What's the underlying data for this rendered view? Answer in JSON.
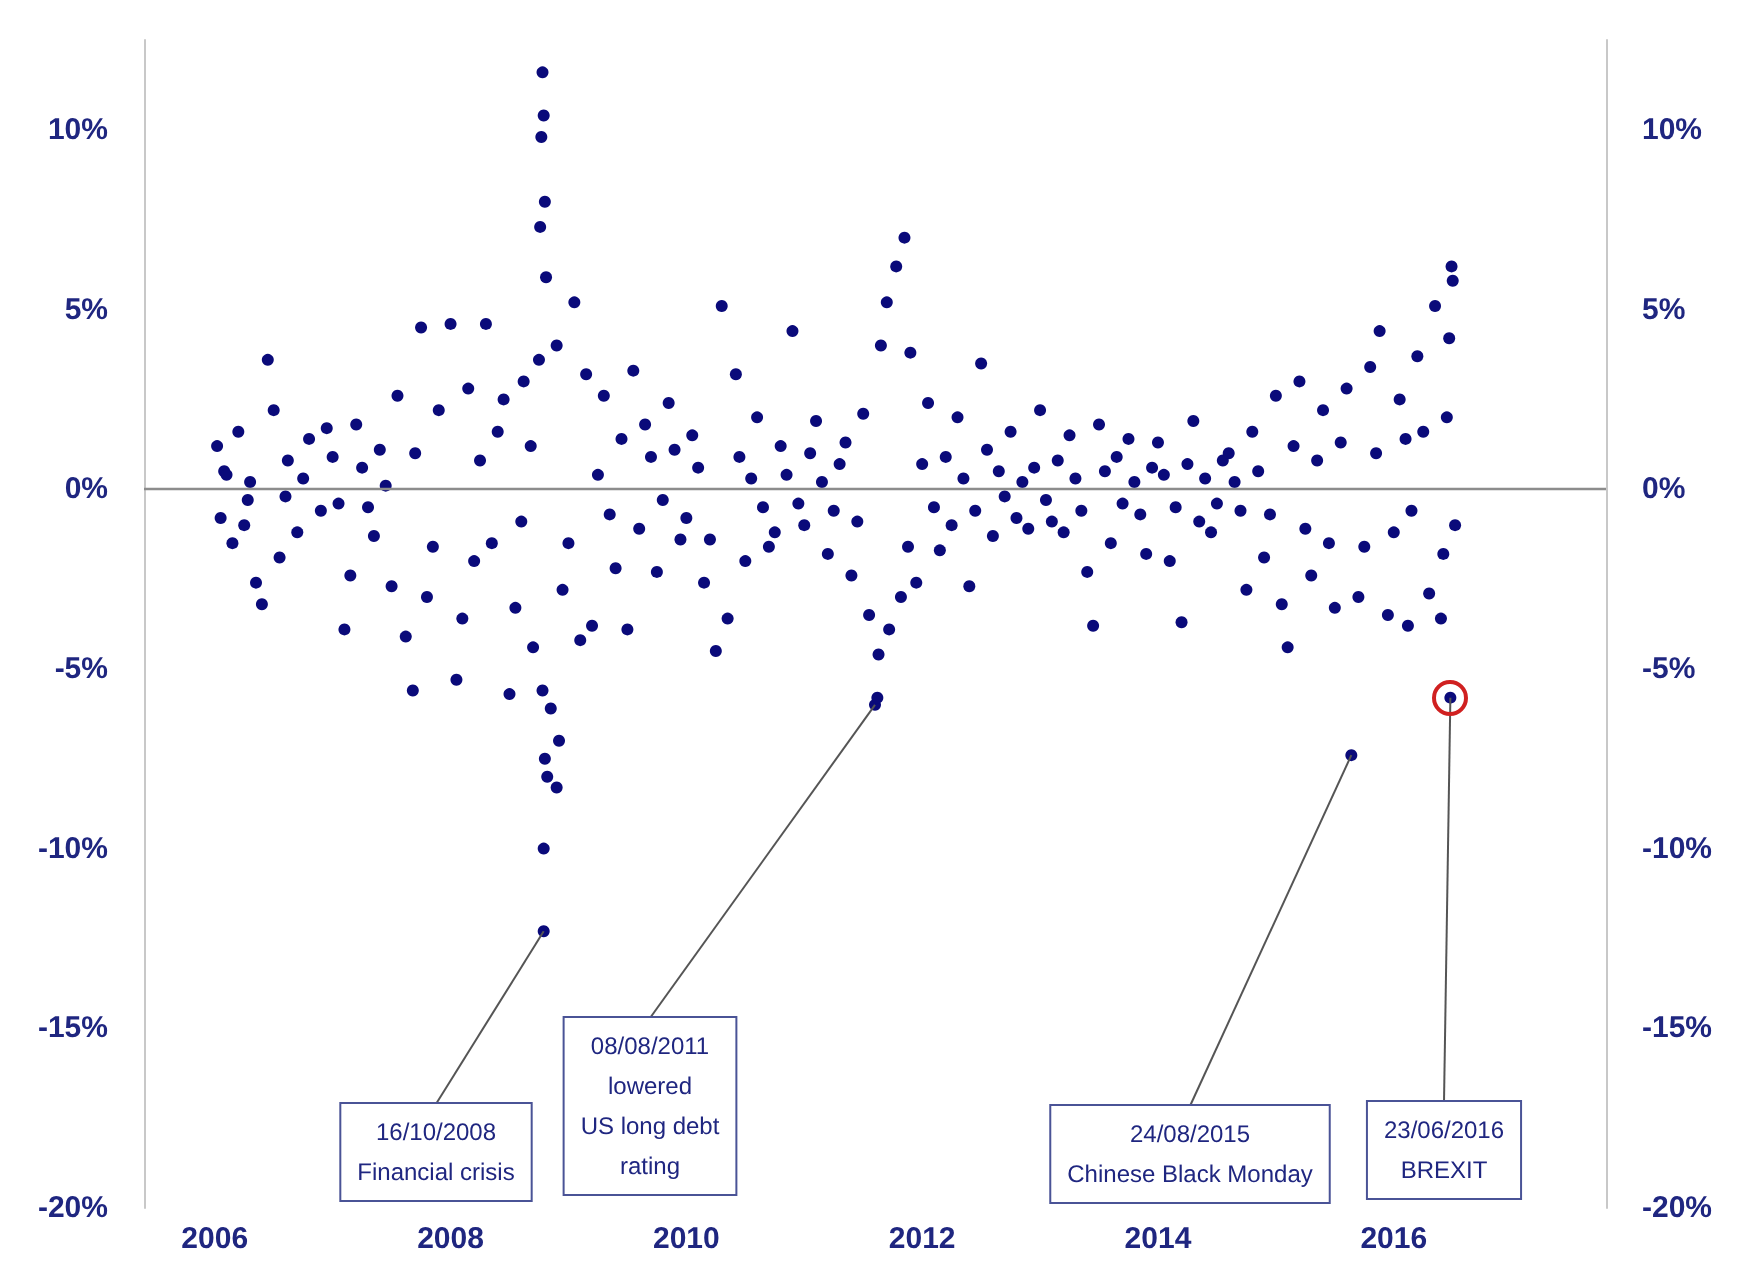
{
  "chart_data": {
    "type": "scatter",
    "marker": "circle",
    "xlim": [
      2005.4,
      2017.8
    ],
    "xticks": [
      2006,
      2008,
      2010,
      2012,
      2014,
      2016
    ],
    "ylim": [
      -20,
      12.5
    ],
    "yticks": [
      {
        "value": -20,
        "label": "-20%"
      },
      {
        "value": -15,
        "label": "-15%"
      },
      {
        "value": -10,
        "label": "-10%"
      },
      {
        "value": -5,
        "label": "-5%"
      },
      {
        "value": 0,
        "label": "0%"
      },
      {
        "value": 5,
        "label": "5%"
      },
      {
        "value": 10,
        "label": "10%"
      }
    ],
    "y2lim": [
      -20,
      12.5
    ],
    "y2ticks": [
      {
        "value": -20,
        "label": "-20%"
      },
      {
        "value": -15,
        "label": "-15%"
      },
      {
        "value": -10,
        "label": "-10%"
      },
      {
        "value": -5,
        "label": "-5%"
      },
      {
        "value": 0,
        "label": "0%"
      },
      {
        "value": 5,
        "label": "5%"
      },
      {
        "value": 10,
        "label": "10%"
      }
    ],
    "ref_lines": [
      {
        "axis": "y",
        "value": 0,
        "color": "#8c8c8c"
      }
    ],
    "series": [
      {
        "color": "#0a0a7a",
        "x": [
          2006.08,
          2006.25,
          2006.6,
          2006.75,
          2006.95,
          2007.25,
          2007.35,
          2007.45,
          2007.7,
          2007.85,
          2008.25,
          2008.4,
          2008.6,
          2008.68,
          2009.0,
          2009.25,
          2009.35,
          2009.45,
          2009.6,
          2009.7,
          2009.8,
          2009.9,
          2010.0,
          2010.1,
          2010.2,
          2010.45,
          2010.55,
          2010.65,
          2010.75,
          2010.85,
          2010.95,
          2011.05,
          2011.15,
          2011.25,
          2011.35,
          2011.45,
          2011.88,
          2012.0,
          2012.1,
          2012.2,
          2012.25,
          2012.35,
          2012.45,
          2012.55,
          2012.65,
          2012.7,
          2012.8,
          2012.85,
          2012.95,
          2013.05,
          2013.15,
          2013.2,
          2013.3,
          2013.35,
          2013.55,
          2013.65,
          2013.7,
          2013.8,
          2013.85,
          2013.95,
          2014.05,
          2014.15,
          2014.25,
          2014.35,
          2014.4,
          2014.5,
          2014.55,
          2014.65,
          2014.7,
          2014.85,
          2014.95,
          2015.15,
          2015.25,
          2015.35,
          2015.45,
          2015.55,
          2015.75,
          2015.85,
          2016.0,
          2016.1,
          2016.15,
          2016.25,
          2016.42
        ],
        "values": [
          0.5,
          -1.0,
          -0.2,
          0.3,
          1.7,
          0.6,
          -1.3,
          0.1,
          1.0,
          -1.6,
          0.8,
          1.6,
          -0.9,
          1.2,
          -1.5,
          0.4,
          -0.7,
          1.4,
          -1.1,
          0.9,
          -0.3,
          1.1,
          -0.8,
          0.6,
          -1.4,
          0.9,
          0.3,
          -0.5,
          -1.2,
          0.4,
          -0.4,
          1.0,
          0.2,
          -0.6,
          1.3,
          -0.9,
          -1.6,
          0.7,
          -0.5,
          0.9,
          -1.0,
          0.3,
          -0.6,
          1.1,
          0.5,
          -0.2,
          -0.8,
          0.2,
          0.6,
          -0.3,
          0.8,
          -1.2,
          0.3,
          -0.6,
          0.5,
          0.9,
          -0.4,
          0.2,
          -0.7,
          0.6,
          0.4,
          -0.5,
          0.7,
          -0.9,
          0.3,
          -0.4,
          0.8,
          0.2,
          -0.6,
          0.5,
          -0.7,
          1.2,
          -1.1,
          0.8,
          -1.5,
          1.3,
          -1.6,
          1.0,
          -1.2,
          1.4,
          -0.6,
          1.6,
          -1.8
        ]
      },
      {
        "color": "#0a0a7a",
        "x": [
          2006.02,
          2006.05,
          2006.1,
          2006.15,
          2006.2,
          2006.28,
          2006.3,
          2006.35,
          2006.4,
          2006.45,
          2006.5,
          2006.55,
          2006.62,
          2006.7,
          2006.8,
          2006.9,
          2007.0,
          2007.05,
          2007.1,
          2007.15,
          2007.2,
          2007.3,
          2007.4,
          2007.5,
          2007.55,
          2007.62,
          2007.68,
          2007.75,
          2007.8,
          2007.9,
          2008.0,
          2008.05,
          2008.1,
          2008.15,
          2008.2,
          2008.3,
          2008.35,
          2008.45,
          2008.5,
          2008.55,
          2008.62,
          2008.7,
          2008.75,
          2008.76,
          2008.77,
          2008.78,
          2008.79,
          2008.8,
          2008.81,
          2008.78,
          2008.8,
          2008.79,
          2008.79,
          2008.82,
          2008.85,
          2008.9,
          2008.92,
          2008.9,
          2008.95,
          2009.05,
          2009.1,
          2009.15,
          2009.2,
          2009.3,
          2009.4,
          2009.5,
          2009.55,
          2009.65,
          2009.75,
          2009.85,
          2009.95,
          2010.05,
          2010.15,
          2010.25,
          2010.3,
          2010.35,
          2010.42,
          2010.5,
          2010.6,
          2010.7,
          2010.8,
          2010.9,
          2011.0,
          2011.1,
          2011.2,
          2011.3,
          2011.4,
          2011.5,
          2011.55,
          2011.6,
          2011.62,
          2011.63,
          2011.65,
          2011.7,
          2011.72,
          2011.78,
          2011.82,
          2011.85,
          2011.9,
          2011.95,
          2012.05,
          2012.15,
          2012.3,
          2012.4,
          2012.5,
          2012.6,
          2012.75,
          2012.9,
          2013.0,
          2013.1,
          2013.25,
          2013.4,
          2013.45,
          2013.5,
          2013.6,
          2013.75,
          2013.9,
          2014.0,
          2014.1,
          2014.2,
          2014.3,
          2014.45,
          2014.6,
          2014.75,
          2014.8,
          2014.9,
          2015.0,
          2015.05,
          2015.1,
          2015.2,
          2015.3,
          2015.4,
          2015.5,
          2015.6,
          2015.64,
          2015.7,
          2015.8,
          2015.88,
          2015.95,
          2016.05,
          2016.12,
          2016.2,
          2016.3,
          2016.35,
          2016.4,
          2016.45,
          2016.47,
          2016.48,
          2016.49,
          2016.5,
          2016.52
        ],
        "values": [
          1.2,
          -0.8,
          0.4,
          -1.5,
          1.6,
          -0.3,
          0.2,
          -2.6,
          -3.2,
          3.6,
          2.2,
          -1.9,
          0.8,
          -1.2,
          1.4,
          -0.6,
          0.9,
          -0.4,
          -3.9,
          -2.4,
          1.8,
          -0.5,
          1.1,
          -2.7,
          2.6,
          -4.1,
          -5.6,
          4.5,
          -3.0,
          2.2,
          4.6,
          -5.3,
          -3.6,
          2.8,
          -2.0,
          4.6,
          -1.5,
          2.5,
          -5.7,
          -3.3,
          3.0,
          -4.4,
          3.6,
          7.3,
          9.8,
          11.6,
          10.4,
          8.0,
          5.9,
          -5.6,
          -7.5,
          -10.0,
          -12.3,
          -8.0,
          -6.1,
          -8.3,
          -7.0,
          4.0,
          -2.8,
          5.2,
          -4.2,
          3.2,
          -3.8,
          2.6,
          -2.2,
          -3.9,
          3.3,
          1.8,
          -2.3,
          2.4,
          -1.4,
          1.5,
          -2.6,
          -4.5,
          5.1,
          -3.6,
          3.2,
          -2.0,
          2.0,
          -1.6,
          1.2,
          4.4,
          -1.0,
          1.9,
          -1.8,
          0.7,
          -2.4,
          2.1,
          -3.5,
          -6.0,
          -5.8,
          -4.6,
          4.0,
          5.2,
          -3.9,
          6.2,
          -3.0,
          7.0,
          3.8,
          -2.6,
          2.4,
          -1.7,
          2.0,
          -2.7,
          3.5,
          -1.3,
          1.6,
          -1.1,
          2.2,
          -0.9,
          1.5,
          -2.3,
          -3.8,
          1.8,
          -1.5,
          1.4,
          -1.8,
          1.3,
          -2.0,
          -3.7,
          1.9,
          -1.2,
          1.0,
          -2.8,
          1.6,
          -1.9,
          2.6,
          -3.2,
          -4.4,
          3.0,
          -2.4,
          2.2,
          -3.3,
          2.8,
          -7.4,
          -3.0,
          3.4,
          4.4,
          -3.5,
          2.5,
          -3.8,
          3.7,
          -2.9,
          5.1,
          -3.6,
          2.0,
          4.2,
          -5.8,
          6.2,
          5.8,
          -1.0
        ]
      }
    ],
    "annotations": [
      {
        "text": "16/10/2008\nFinancial crisis",
        "x": 2008.79,
        "y": -12.3
      },
      {
        "text": "08/08/2011\nlowered\nUS long debt\nrating",
        "x": 2011.6,
        "y": -6.0
      },
      {
        "text": "24/08/2015\nChinese Black Monday",
        "x": 2015.64,
        "y": -7.4
      },
      {
        "text": "23/06/2016\nBREXIT",
        "x": 2016.48,
        "y": -5.8
      }
    ]
  }
}
